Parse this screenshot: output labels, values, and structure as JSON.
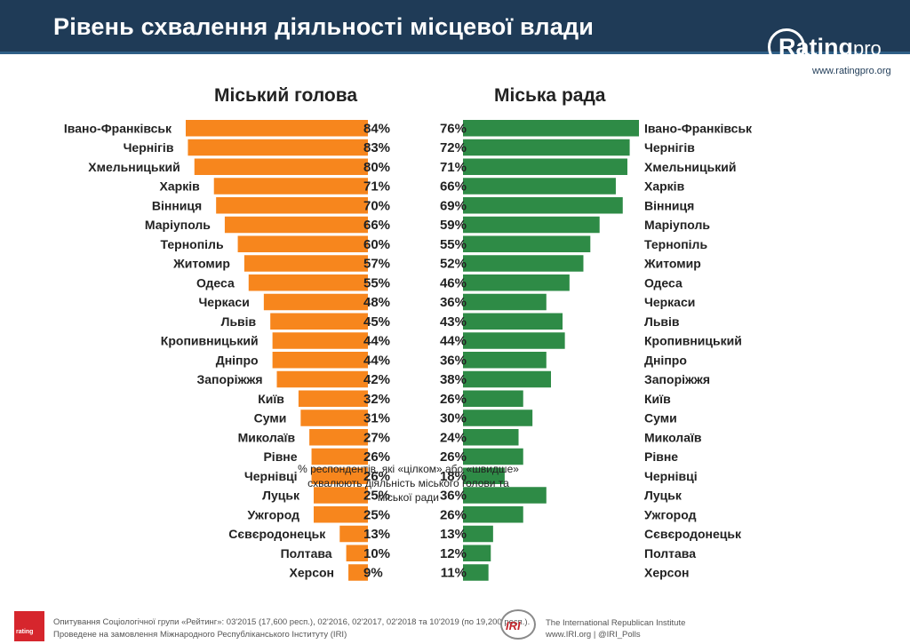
{
  "page": {
    "title": "Рівень схвалення діяльності місцевої влади",
    "logo": {
      "brand": "Rating",
      "brand_suffix": "pro",
      "url": "www.ratingpro.org"
    },
    "note": "% респондентів, які «цілком» або «швидше» схвалюють діяльність міського голови та міської ради",
    "footer": {
      "source_line1": "Опитування Соціологічної групи «Рейтинг»: 03'2015 (17,600 респ.), 02'2016, 02'2017, 02'2018 та 10'2019 (по 19,200 респ.).",
      "source_line2": "Проведене на замовлення Міжнародного Республіканського Інституту (IRI)",
      "iri_abbr": "IRI",
      "iri_name": "The International Republican Institute",
      "iri_links": "www.IRI.org | @IRI_Polls"
    }
  },
  "colors": {
    "header_bg": "#1f3b57",
    "mayor_bar": "#f7861d",
    "council_bar": "#2e8b46"
  },
  "chart_data": [
    {
      "type": "bar",
      "title": "Міський голова",
      "categories": [
        "Івано-Франківськ",
        "Чернігів",
        "Хмельницький",
        "Харків",
        "Вінниця",
        "Маріуполь",
        "Тернопіль",
        "Житомир",
        "Одеса",
        "Черкаси",
        "Львів",
        "Кропивницький",
        "Дніпро",
        "Запоріжжя",
        "Київ",
        "Суми",
        "Миколаїв",
        "Рівне",
        "Чернівці",
        "Луцьк",
        "Ужгород",
        "Сєвєродонецьк",
        "Полтава",
        "Херсон"
      ],
      "values": [
        84,
        83,
        80,
        71,
        70,
        66,
        60,
        57,
        55,
        48,
        45,
        44,
        44,
        42,
        32,
        31,
        27,
        26,
        26,
        25,
        25,
        13,
        10,
        9
      ],
      "unit": "%",
      "orientation": "horizontal",
      "xlim": [
        0,
        100
      ]
    },
    {
      "type": "bar",
      "title": "Міська рада",
      "categories": [
        "Івано-Франківськ",
        "Чернігів",
        "Хмельницький",
        "Харків",
        "Вінниця",
        "Маріуполь",
        "Тернопіль",
        "Житомир",
        "Одеса",
        "Черкаси",
        "Львів",
        "Кропивницький",
        "Дніпро",
        "Запоріжжя",
        "Київ",
        "Суми",
        "Миколаїв",
        "Рівне",
        "Чернівці",
        "Луцьк",
        "Ужгород",
        "Сєвєродонецьк",
        "Полтава",
        "Херсон"
      ],
      "values": [
        76,
        72,
        71,
        66,
        69,
        59,
        55,
        52,
        46,
        36,
        43,
        44,
        36,
        38,
        26,
        30,
        24,
        26,
        18,
        36,
        26,
        13,
        12,
        11
      ],
      "unit": "%",
      "orientation": "horizontal",
      "xlim": [
        0,
        100
      ]
    }
  ]
}
